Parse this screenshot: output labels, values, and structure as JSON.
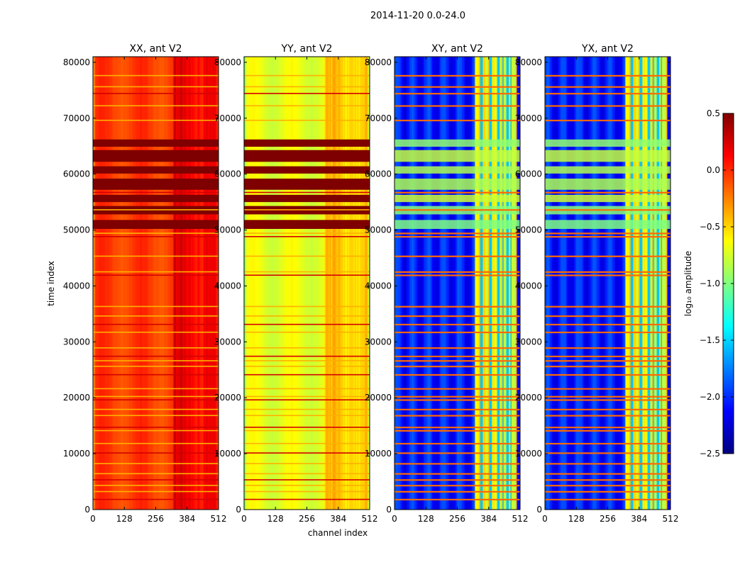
{
  "figure": {
    "suptitle": "2014-11-20 0.0-24.0",
    "xlabel": "channel index",
    "ylabel": "time index"
  },
  "chart_data": {
    "type": "heatmap",
    "suptitle": "2014-11-20 0.0-24.0",
    "xlabel": "channel index",
    "ylabel": "time index",
    "xlim": [
      0,
      512
    ],
    "ylim": [
      0,
      81000
    ],
    "x_ticks": [
      0,
      128,
      256,
      384,
      512
    ],
    "y_ticks": [
      0,
      10000,
      20000,
      30000,
      40000,
      50000,
      60000,
      70000,
      80000
    ],
    "panels": [
      {
        "title": "XX, ant V2",
        "base_level": -0.05
      },
      {
        "title": "YY, ant V2",
        "base_level": -0.7
      },
      {
        "title": "XY, ant V2",
        "base_level": -2.05
      },
      {
        "title": "YX, ant V2",
        "base_level": -2.05
      }
    ],
    "colorbar": {
      "label": "log₁₀ amplitude",
      "range": [
        -2.5,
        0.5
      ],
      "ticks": [
        0.5,
        0.0,
        -0.5,
        -1.0,
        -1.5,
        -2.0,
        -2.5
      ],
      "tick_labels": [
        "0.5",
        "0.0",
        "−0.5",
        "−1.0",
        "−1.5",
        "−2.0",
        "−2.5"
      ],
      "colormap": "jet"
    },
    "features": {
      "saturated_blocks": [
        [
          50200,
          51800
        ],
        [
          52800,
          54300
        ],
        [
          55000,
          56300
        ],
        [
          57200,
          59200
        ],
        [
          60100,
          61400
        ],
        [
          62200,
          64300
        ],
        [
          64900,
          66200
        ]
      ],
      "rfi_lines": [
        1800,
        3200,
        4300,
        5300,
        6400,
        8200,
        10100,
        11800,
        14100,
        14700,
        16800,
        17900,
        19600,
        20200,
        21600,
        24100,
        25600,
        26600,
        27400,
        28900,
        31700,
        33100,
        34600,
        36300,
        41900,
        42500,
        45300,
        48800,
        49400,
        53600,
        56700,
        69600,
        72200,
        74400,
        75600,
        77600
      ],
      "high_channel_band": [
        330,
        512
      ]
    }
  }
}
